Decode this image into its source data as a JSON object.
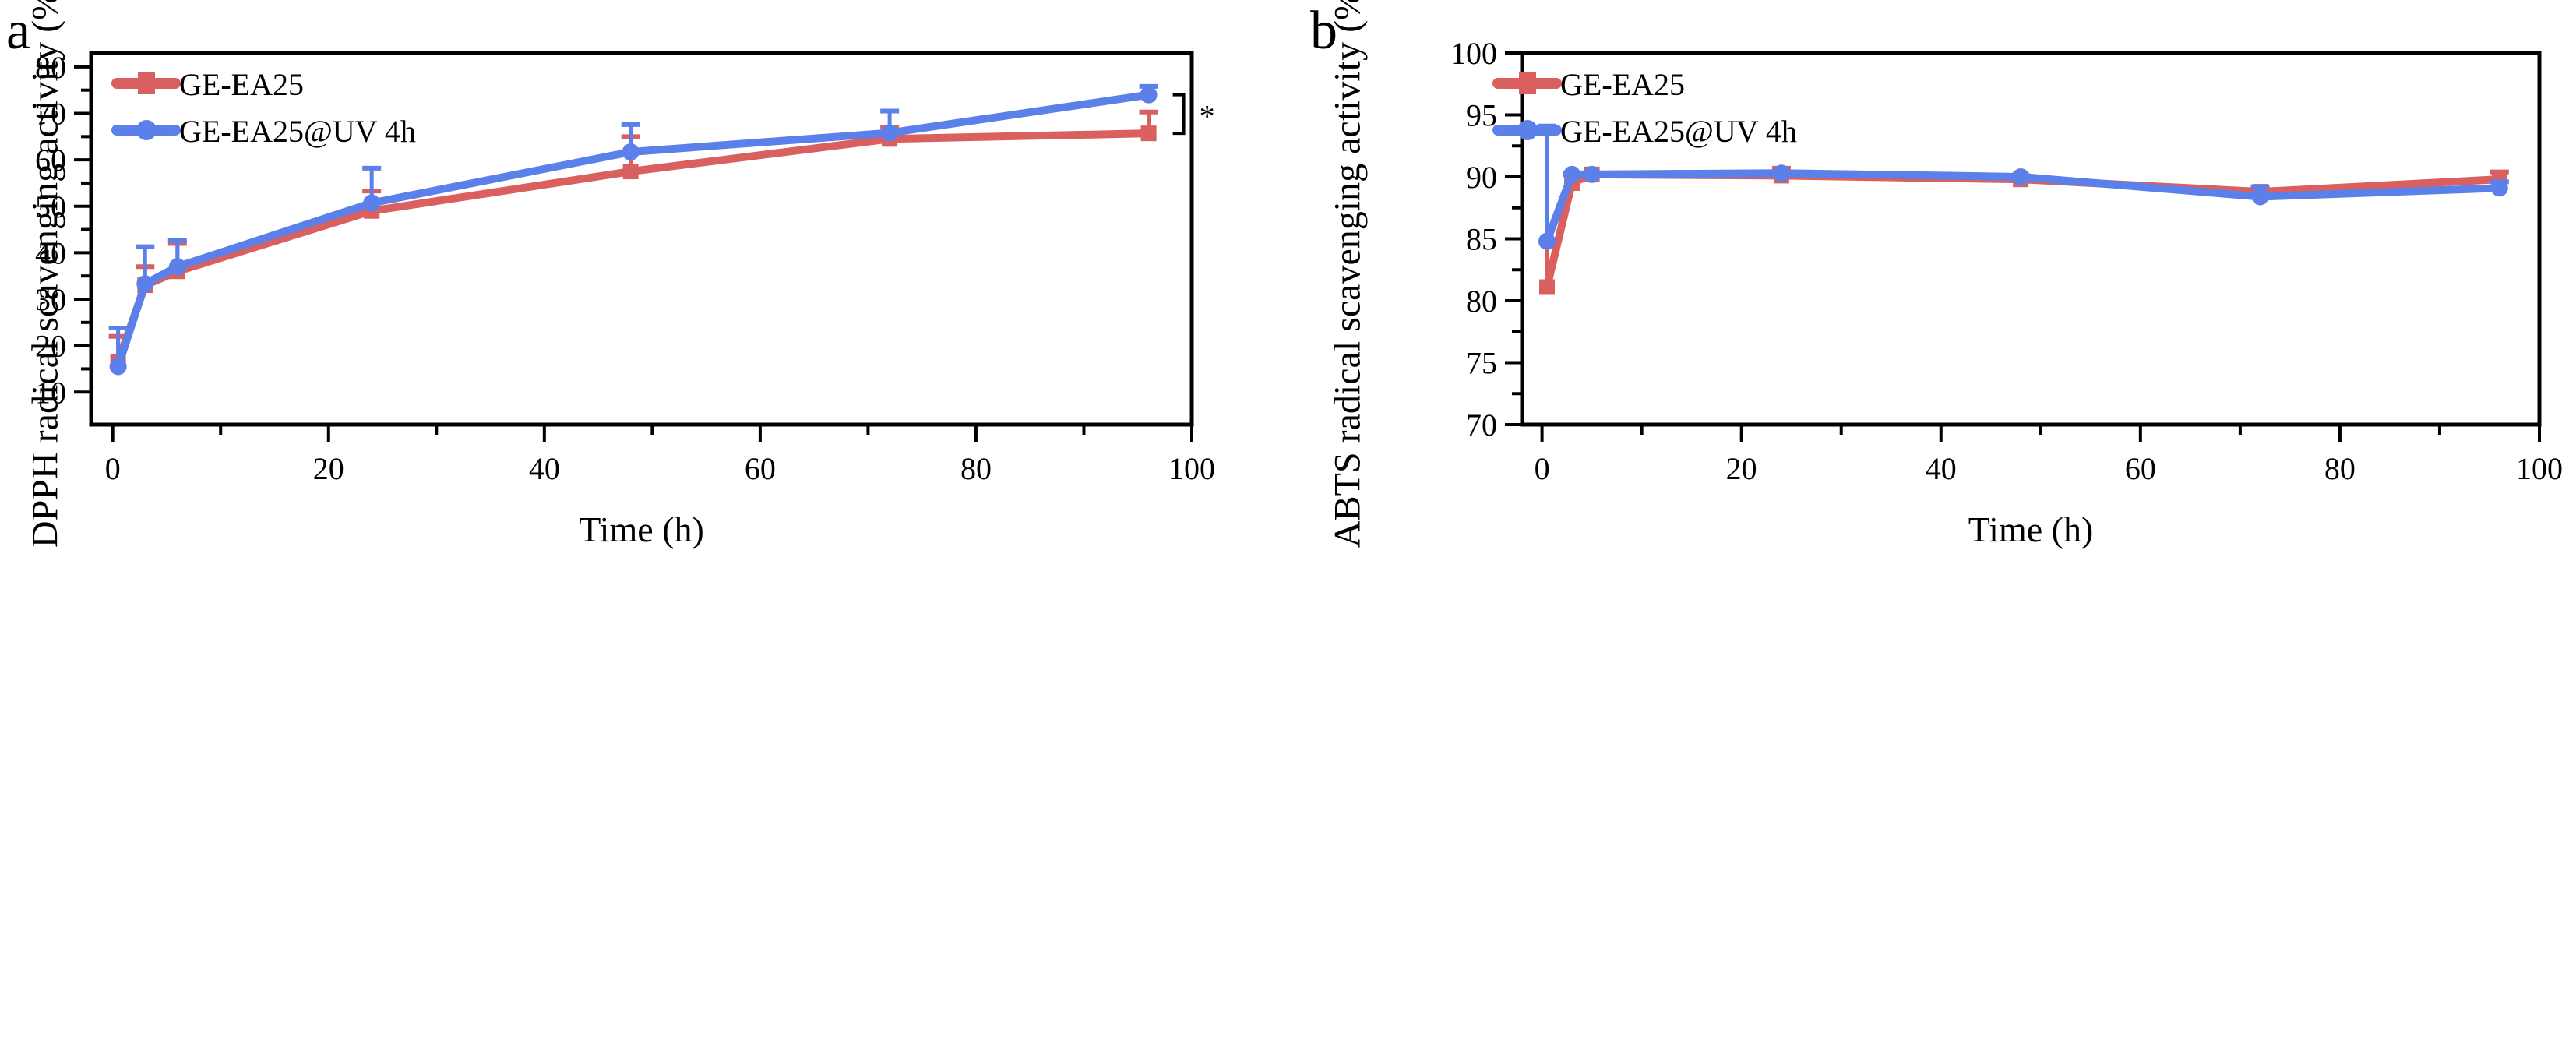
{
  "colors": {
    "series1": "#d9605f",
    "series2": "#5b80ea",
    "axis": "#000000"
  },
  "chart_data": [
    {
      "panel": "a",
      "type": "line",
      "title": "",
      "xlabel": "Time (h)",
      "ylabel": "DPPH radical scavenging activity (%)",
      "xlim": [
        -2,
        100
      ],
      "ylim": [
        3,
        83
      ],
      "xticks": [
        0,
        20,
        40,
        60,
        80,
        100
      ],
      "xtick_labels": [
        "0",
        "20",
        "40",
        "60",
        "80",
        "100"
      ],
      "yticks": [
        10,
        20,
        30,
        40,
        50,
        60,
        70,
        80
      ],
      "ytick_labels": [
        "10",
        "20",
        "30",
        "40",
        "50",
        "60",
        "70",
        "80"
      ],
      "x_minor_step": 10,
      "y_minor_step": 5,
      "grid": false,
      "legend_position": "top-left",
      "annotation": {
        "text": "*",
        "between_series_at_x": 96,
        "y_range": [
          65.7,
          74
        ]
      },
      "x": [
        0.5,
        3,
        6,
        24,
        48,
        72,
        96
      ],
      "series": [
        {
          "name": "GE-EA25",
          "marker": "square",
          "values": [
            16.5,
            33.0,
            36.0,
            49.0,
            57.5,
            64.5,
            65.7
          ],
          "error_upper": [
            22.0,
            37.0,
            42.0,
            53.3,
            65.0,
            67.0,
            70.3
          ]
        },
        {
          "name": "GE-EA25@UV 4h",
          "marker": "circle",
          "values": [
            15.5,
            33.3,
            37.0,
            50.7,
            61.7,
            65.8,
            74.0
          ],
          "error_upper": [
            23.8,
            41.3,
            42.6,
            58.2,
            67.6,
            70.5,
            75.8
          ]
        }
      ]
    },
    {
      "panel": "b",
      "type": "line",
      "title": "",
      "xlabel": "Time (h)",
      "ylabel": "ABTS radical scavenging activity (%)",
      "xlim": [
        -2,
        100
      ],
      "ylim": [
        70,
        100
      ],
      "xticks": [
        0,
        20,
        40,
        60,
        80,
        100
      ],
      "xtick_labels": [
        "0",
        "20",
        "40",
        "60",
        "80",
        "100"
      ],
      "yticks": [
        70,
        75,
        80,
        85,
        90,
        95,
        100
      ],
      "ytick_labels": [
        "70",
        "75",
        "80",
        "85",
        "90",
        "95",
        "100"
      ],
      "x_minor_step": 10,
      "y_minor_step": 2.5,
      "grid": false,
      "legend_position": "top-left",
      "x": [
        0.5,
        3,
        5,
        24,
        48,
        72,
        96
      ],
      "series": [
        {
          "name": "GE-EA25",
          "marker": "square",
          "values": [
            81.1,
            89.5,
            90.2,
            90.1,
            89.8,
            88.8,
            89.8
          ],
          "error_upper": [
            93.8,
            90.2,
            90.3,
            90.7,
            90.0,
            89.1,
            90.4
          ]
        },
        {
          "name": "GE-EA25@UV 4h",
          "marker": "circle",
          "values": [
            84.8,
            90.2,
            90.2,
            90.3,
            90.0,
            88.4,
            89.1
          ],
          "error_upper": [
            94.1,
            90.3,
            90.3,
            90.4,
            90.1,
            89.2,
            89.6
          ]
        }
      ]
    }
  ]
}
